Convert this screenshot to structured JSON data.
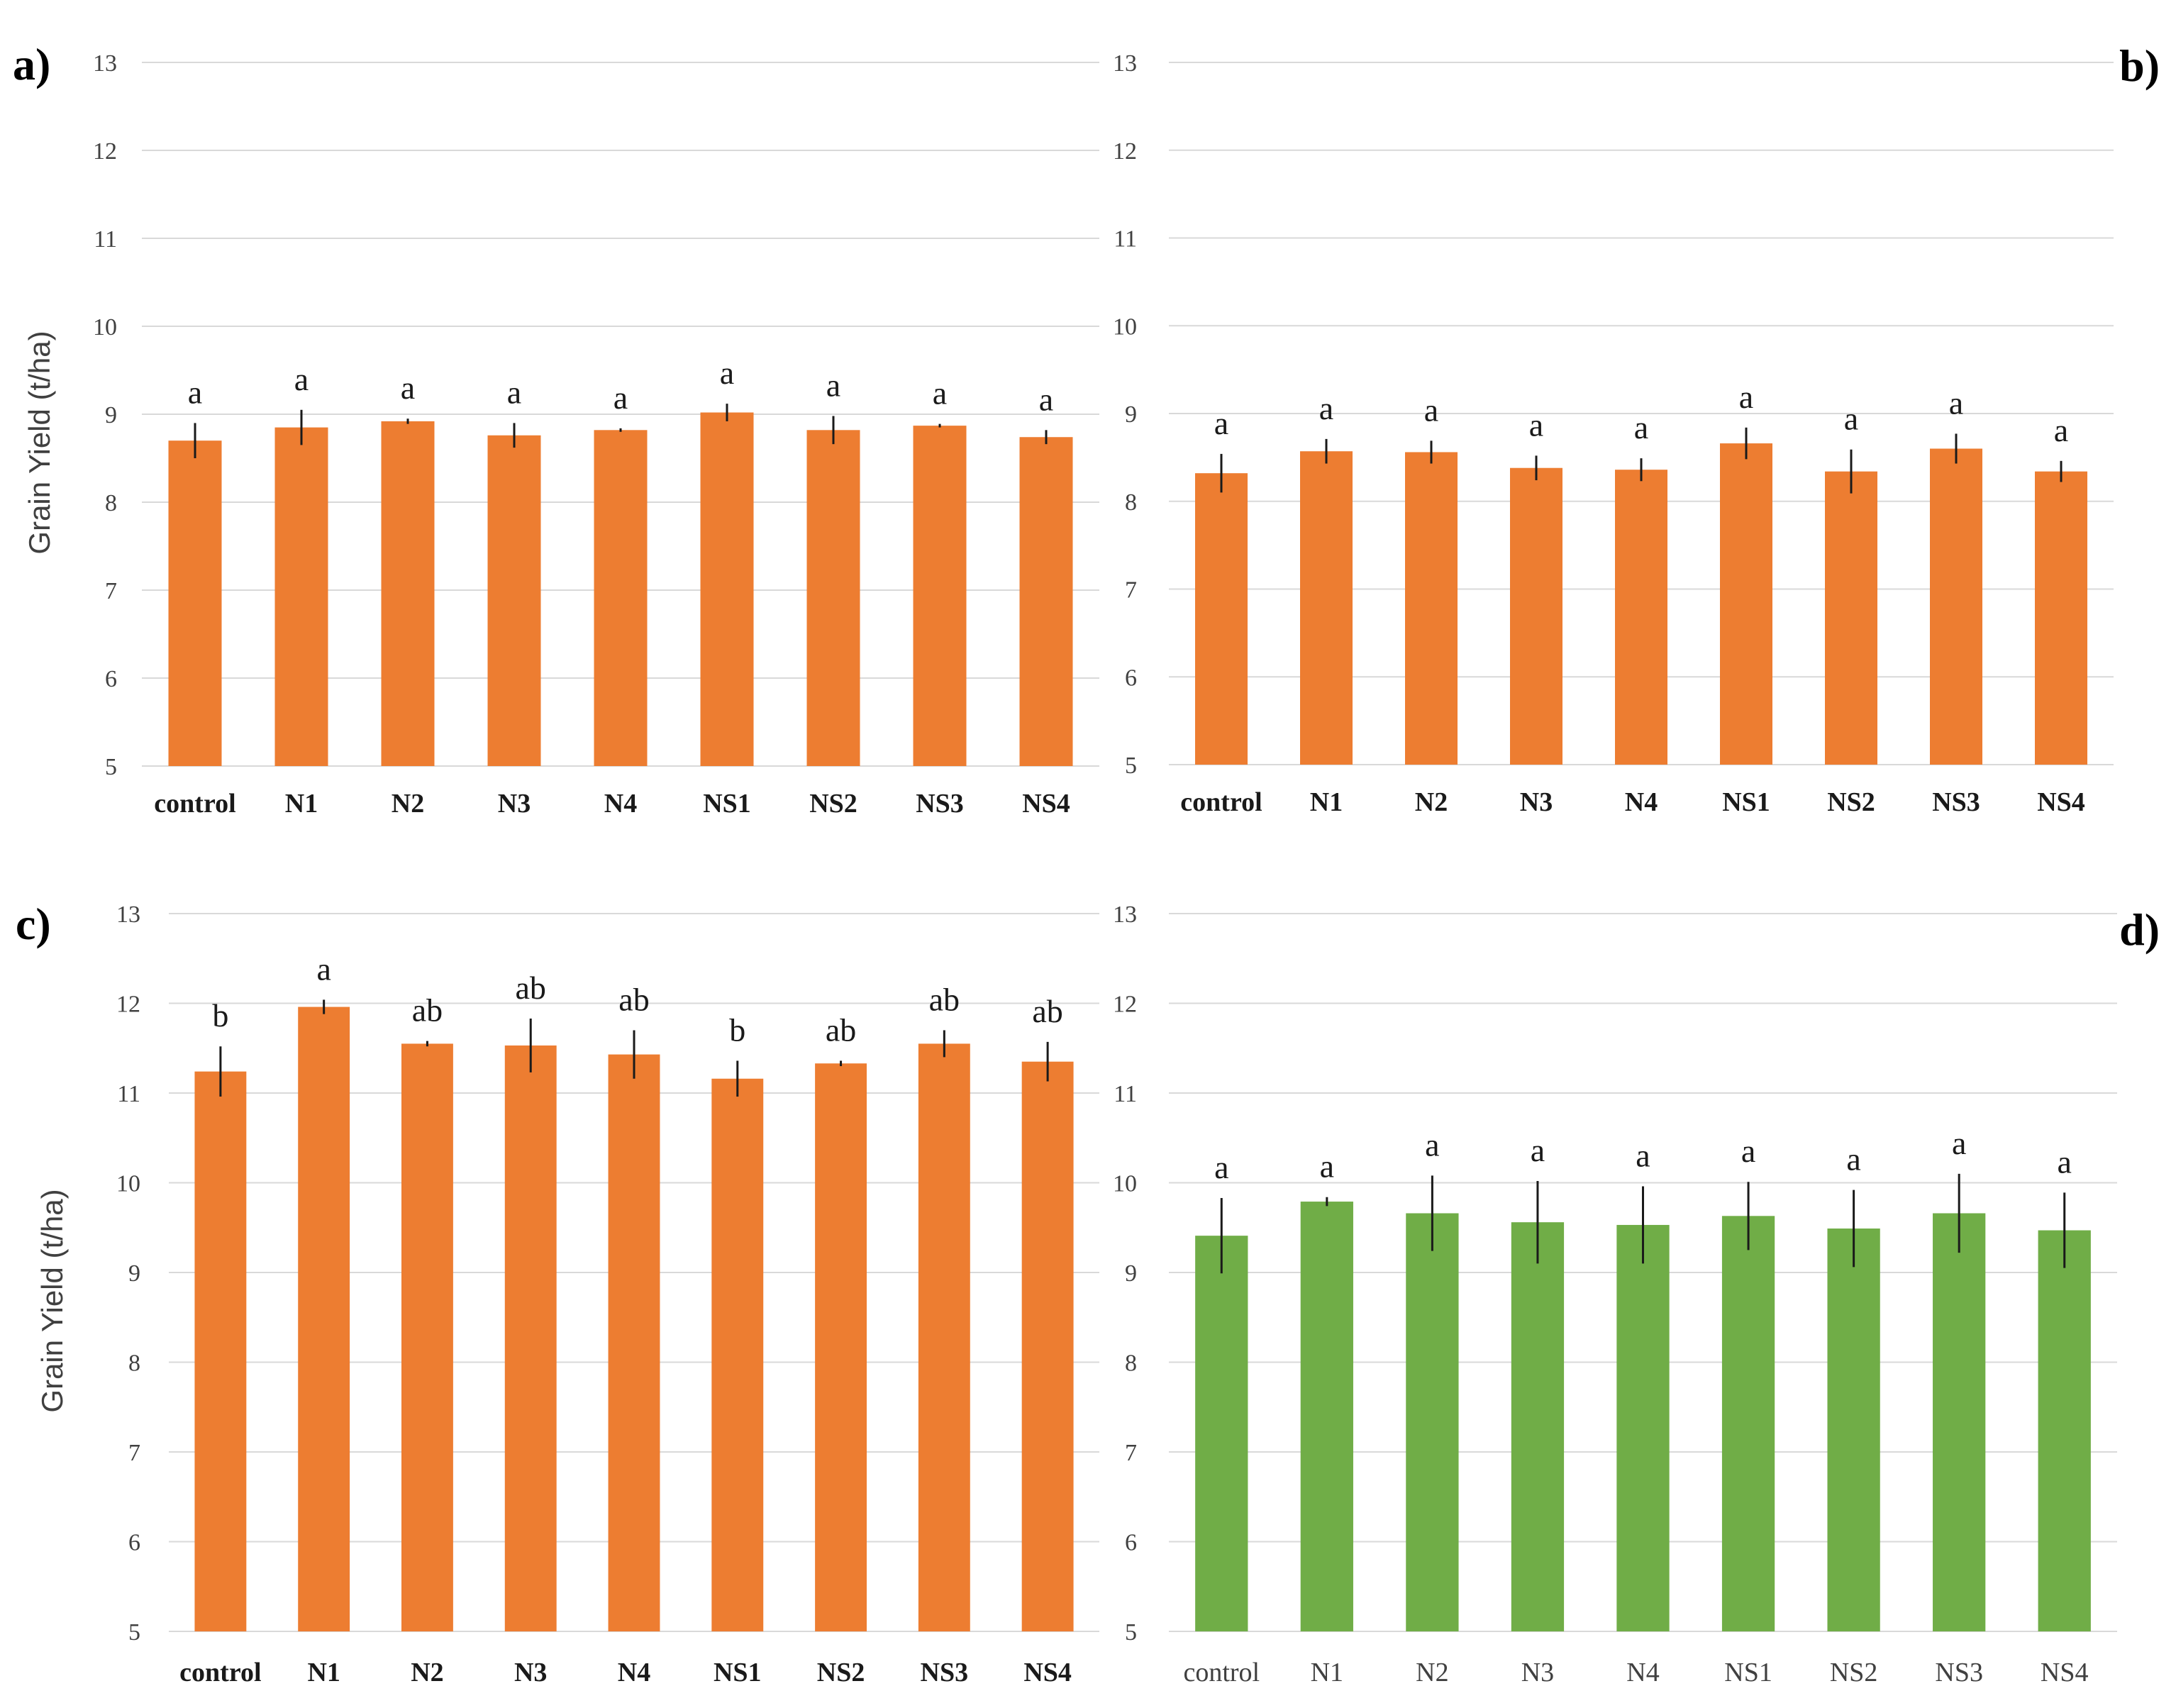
{
  "chart_data": [
    {
      "type": "bar",
      "panel_label": "a)",
      "ylabel": "Grain Yield (t/ha)",
      "ylim": [
        5,
        13
      ],
      "yticks": [
        5,
        6,
        7,
        8,
        9,
        10,
        11,
        12,
        13
      ],
      "grid": true,
      "bar_color": "#ED7D31",
      "label_weight": "bold",
      "categories": [
        "control",
        "N1",
        "N2",
        "N3",
        "N4",
        "NS1",
        "NS2",
        "NS3",
        "NS4"
      ],
      "values": [
        8.7,
        8.85,
        8.92,
        8.76,
        8.82,
        9.02,
        8.82,
        8.87,
        8.74
      ],
      "errors": [
        0.2,
        0.2,
        0.03,
        0.14,
        0.02,
        0.1,
        0.16,
        0.02,
        0.08
      ],
      "letters": [
        "a",
        "a",
        "a",
        "a",
        "a",
        "a",
        "a",
        "a",
        "a"
      ]
    },
    {
      "type": "bar",
      "panel_label": "b)",
      "ylabel": "",
      "ylim": [
        5,
        13
      ],
      "yticks": [
        5,
        6,
        7,
        8,
        9,
        10,
        11,
        12,
        13
      ],
      "grid": true,
      "bar_color": "#ED7D31",
      "label_weight": "bold",
      "categories": [
        "control",
        "N1",
        "N2",
        "N3",
        "N4",
        "NS1",
        "NS2",
        "NS3",
        "NS4"
      ],
      "values": [
        8.32,
        8.57,
        8.56,
        8.38,
        8.36,
        8.66,
        8.34,
        8.6,
        8.34
      ],
      "errors": [
        0.22,
        0.14,
        0.13,
        0.14,
        0.13,
        0.18,
        0.25,
        0.17,
        0.12
      ],
      "letters": [
        "a",
        "a",
        "a",
        "a",
        "a",
        "a",
        "a",
        "a",
        "a"
      ]
    },
    {
      "type": "bar",
      "panel_label": "c)",
      "ylabel": "Grain Yield (t/ha)",
      "ylim": [
        5,
        13
      ],
      "yticks": [
        5,
        6,
        7,
        8,
        9,
        10,
        11,
        12,
        13
      ],
      "grid": true,
      "bar_color": "#ED7D31",
      "label_weight": "bold",
      "categories": [
        "control",
        "N1",
        "N2",
        "N3",
        "N4",
        "NS1",
        "NS2",
        "NS3",
        "NS4"
      ],
      "values": [
        11.24,
        11.96,
        11.55,
        11.53,
        11.43,
        11.16,
        11.33,
        11.55,
        11.35
      ],
      "errors": [
        0.28,
        0.08,
        0.03,
        0.3,
        0.27,
        0.2,
        0.03,
        0.15,
        0.22
      ],
      "letters": [
        "b",
        "a",
        "ab",
        "ab",
        "ab",
        "b",
        "ab",
        "ab",
        "ab"
      ]
    },
    {
      "type": "bar",
      "panel_label": "d)",
      "ylabel": "",
      "ylim": [
        5,
        13
      ],
      "yticks": [
        5,
        6,
        7,
        8,
        9,
        10,
        11,
        12,
        13
      ],
      "grid": true,
      "bar_color": "#70AD47",
      "label_weight": "normal",
      "categories": [
        "control",
        "N1",
        "N2",
        "N3",
        "N4",
        "NS1",
        "NS2",
        "NS3",
        "NS4"
      ],
      "values": [
        9.41,
        9.79,
        9.66,
        9.56,
        9.53,
        9.63,
        9.49,
        9.66,
        9.47
      ],
      "errors": [
        0.42,
        0.05,
        0.42,
        0.46,
        0.43,
        0.38,
        0.43,
        0.44,
        0.42
      ],
      "letters": [
        "a",
        "a",
        "a",
        "a",
        "a",
        "a",
        "a",
        "a",
        "a"
      ]
    }
  ]
}
